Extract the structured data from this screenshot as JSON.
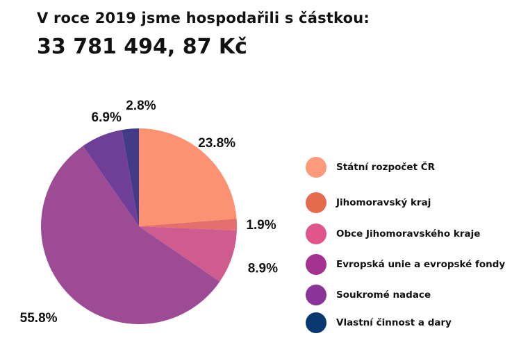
{
  "header": {
    "title": "V roce 2019 jsme hospodařili s částkou:",
    "amount": "33 781 494, 87 Kč"
  },
  "chart_data": {
    "type": "pie",
    "title": "",
    "legend_position": "right",
    "series": [
      {
        "name": "Státní rozpočet ČR",
        "value": 23.8,
        "label": "23.8%",
        "color": "#fc9272",
        "legend_color": "#fd9a79"
      },
      {
        "name": "Jihomoravský kraj",
        "value": 1.9,
        "label": "1.9%",
        "color": "#e4706e",
        "legend_color": "#e46b4e"
      },
      {
        "name": "Obce Jihomoravského kraje",
        "value": 8.9,
        "label": "8.9%",
        "color": "#cf5c8e",
        "legend_color": "#e1568a"
      },
      {
        "name": "Evropská unie a evropské fondy",
        "value": 55.8,
        "label": "55.8%",
        "color": "#9e4b96",
        "legend_color": "#a43290"
      },
      {
        "name": "Soukromé nadace",
        "value": 6.9,
        "label": "6.9%",
        "color": "#6f3e97",
        "legend_color": "#8a3399"
      },
      {
        "name": "Vlastní činnost a dary",
        "value": 2.8,
        "label": "2.8%",
        "color": "#443b87",
        "legend_color": "#08386e"
      }
    ]
  }
}
